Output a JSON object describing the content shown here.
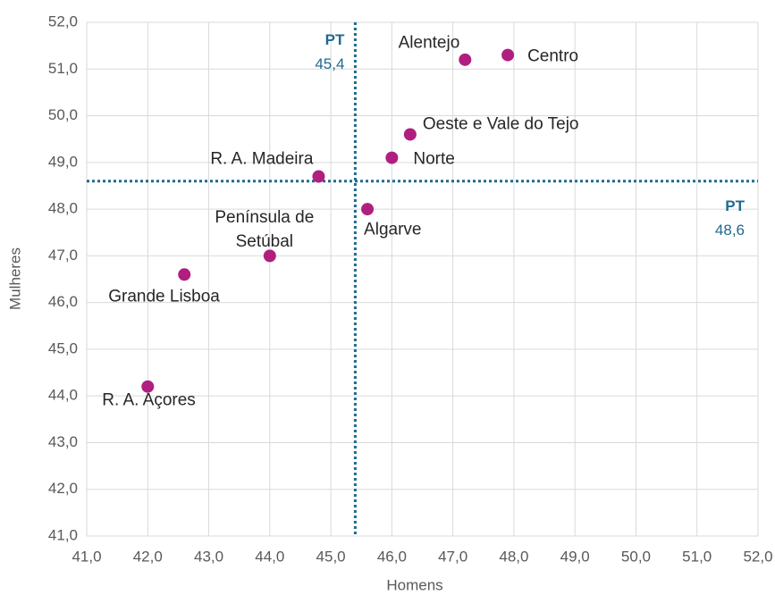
{
  "chart_data": {
    "type": "scatter",
    "x_label": "Homens",
    "y_label": "Mulheres",
    "labels": [
      "Alentejo",
      "Centro",
      "Oeste e Vale do Tejo",
      "Norte",
      "R. A. Madeira",
      "Algarve",
      "Península de Setúbal",
      "Grande Lisboa",
      "R. A. Açores"
    ],
    "x": [
      47.2,
      47.9,
      46.3,
      46.0,
      44.8,
      45.6,
      44.0,
      42.6,
      42.0
    ],
    "y": [
      51.2,
      51.3,
      49.6,
      49.1,
      48.7,
      48.0,
      47.0,
      46.6,
      44.2
    ],
    "color": "#b01f7f",
    "xlim": [
      41,
      52
    ],
    "ylim": [
      41,
      52
    ],
    "xticks": [
      {
        "value": 41,
        "label": "41,0"
      },
      {
        "value": 42,
        "label": "42,0"
      },
      {
        "value": 43,
        "label": "43,0"
      },
      {
        "value": 44,
        "label": "44,0"
      },
      {
        "value": 45,
        "label": "45,0"
      },
      {
        "value": 46,
        "label": "46,0"
      },
      {
        "value": 47,
        "label": "47,0"
      },
      {
        "value": 48,
        "label": "48,0"
      },
      {
        "value": 49,
        "label": "49,0"
      },
      {
        "value": 50,
        "label": "50,0"
      },
      {
        "value": 51,
        "label": "51,0"
      },
      {
        "value": 52,
        "label": "52,0"
      }
    ],
    "yticks": [
      {
        "value": 41,
        "label": "41,0"
      },
      {
        "value": 42,
        "label": "42,0"
      },
      {
        "value": 43,
        "label": "43,0"
      },
      {
        "value": 44,
        "label": "44,0"
      },
      {
        "value": 45,
        "label": "45,0"
      },
      {
        "value": 46,
        "label": "46,0"
      },
      {
        "value": 47,
        "label": "47,0"
      },
      {
        "value": 48,
        "label": "48,0"
      },
      {
        "value": 49,
        "label": "49,0"
      },
      {
        "value": 50,
        "label": "50,0"
      },
      {
        "value": 51,
        "label": "51,0"
      },
      {
        "value": 52,
        "label": "52,0"
      }
    ],
    "grid": true,
    "reference_lines": [
      {
        "axis": "x",
        "name": "PT",
        "value": 45.4,
        "value_label": "45,4",
        "color": "#1f6a8f"
      },
      {
        "axis": "y",
        "name": "PT",
        "value": 48.6,
        "value_label": "48,6",
        "color": "#1f6a8f"
      }
    ]
  }
}
